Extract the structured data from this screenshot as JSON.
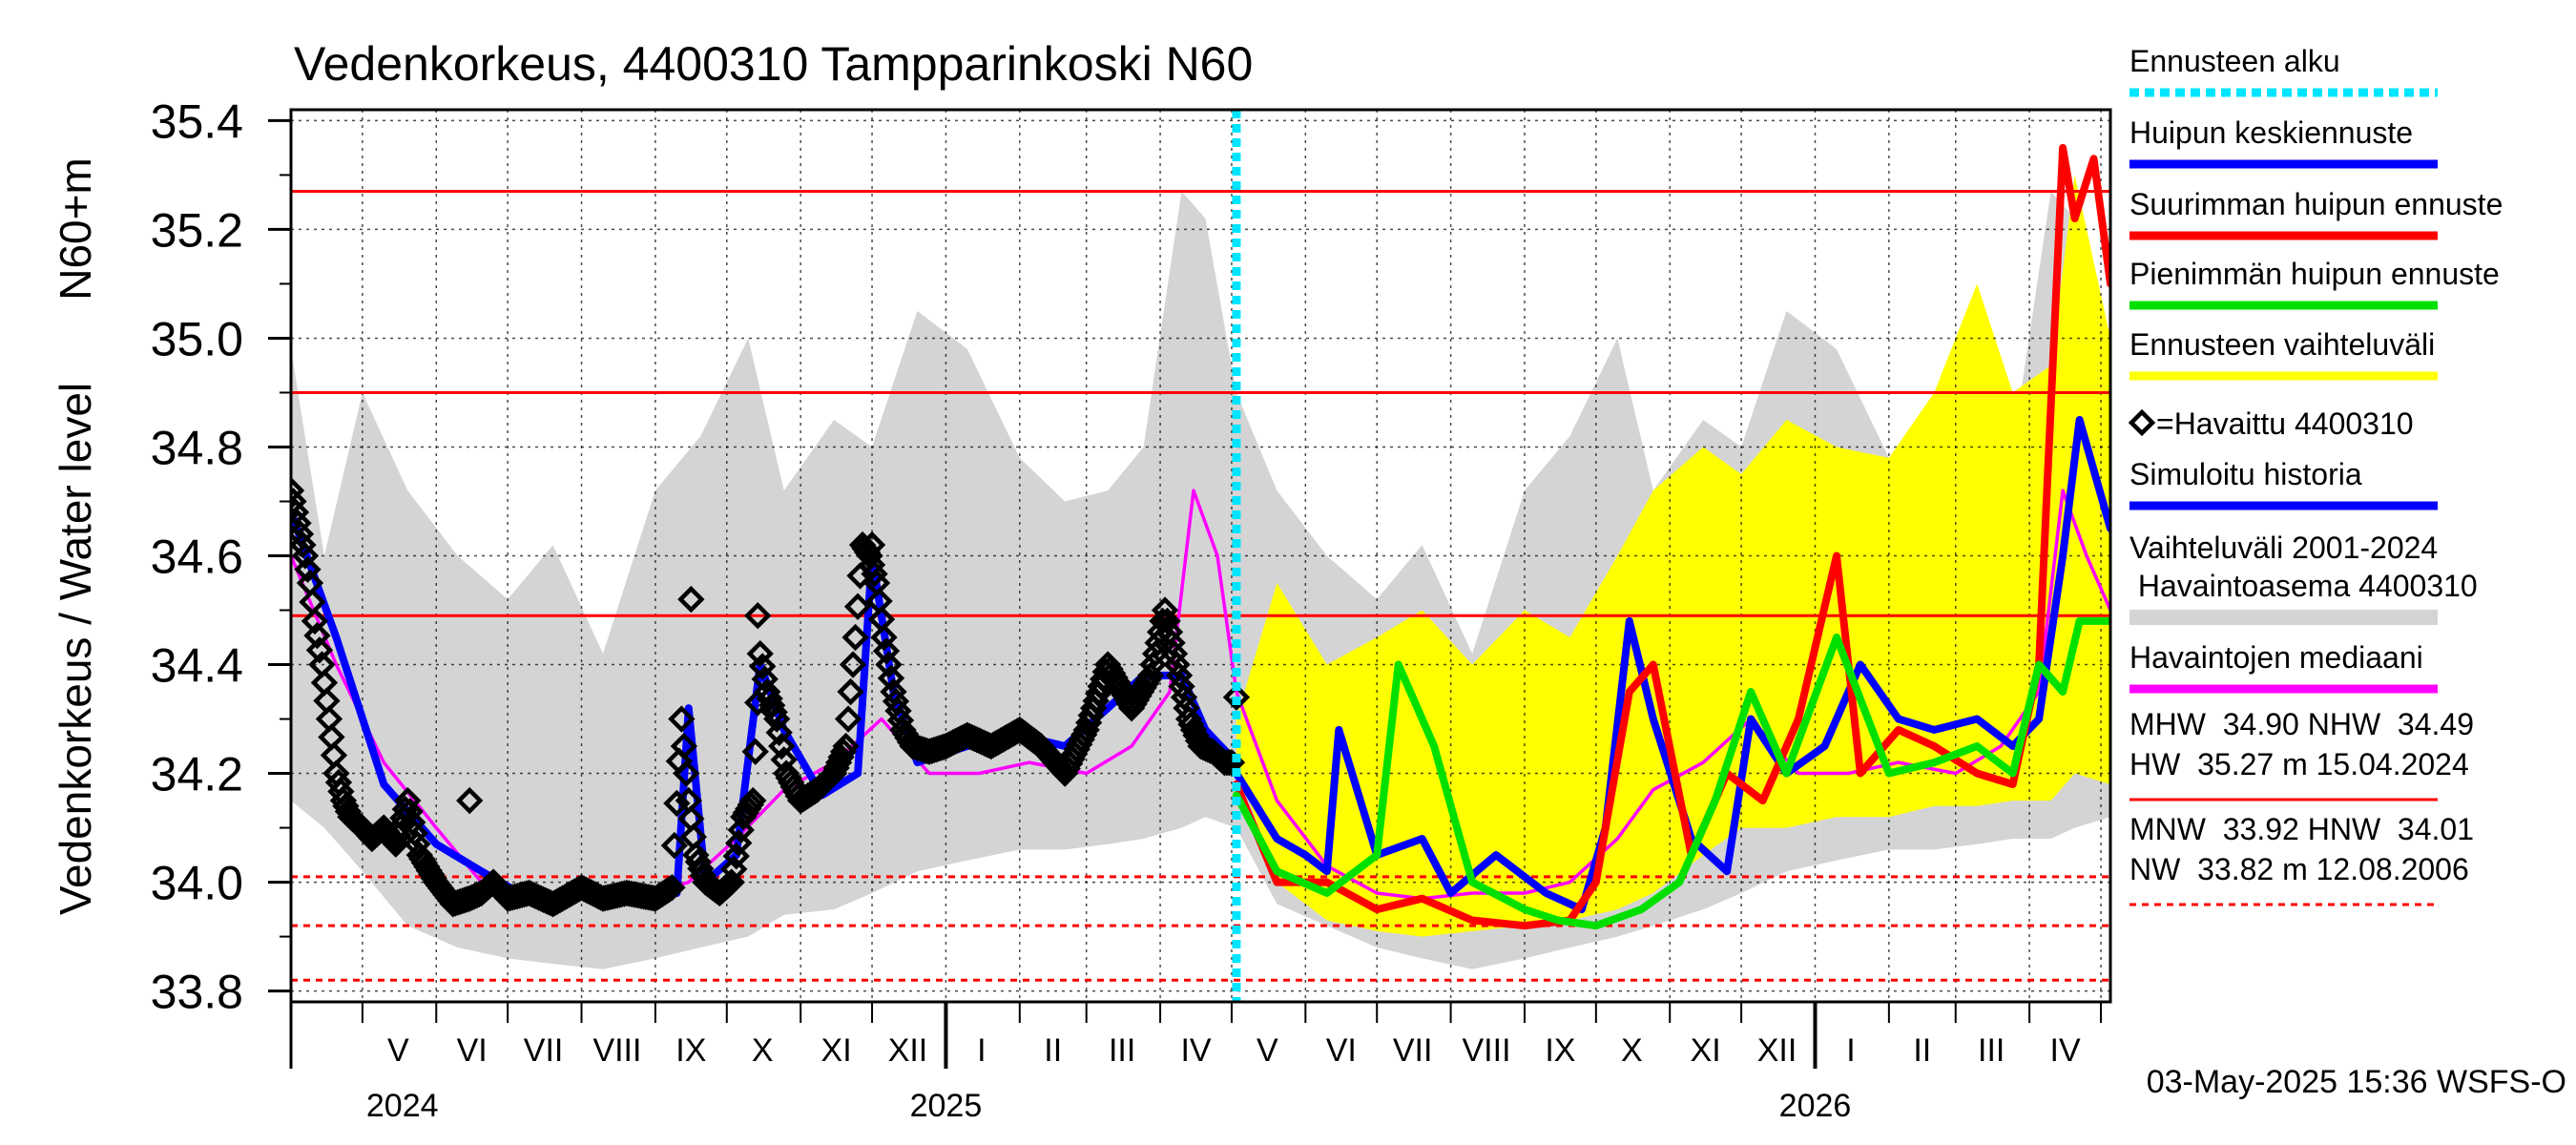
{
  "chart_data": {
    "type": "line",
    "title": "Vedenkorkeus, 4400310 Tampparinkoski N60",
    "ylabel_left": "Vedenkorkeus / Water level",
    "ylabel_right": "N60+m",
    "ylim": [
      33.78,
      35.42
    ],
    "y_ticks": [
      "33.8",
      "34.0",
      "34.2",
      "34.4",
      "34.6",
      "34.8",
      "35.0",
      "35.2",
      "35.4"
    ],
    "x_start": "2024-04-01",
    "x_end": "2026-05-05",
    "forecast_start": "2025-05-03",
    "month_labels": [
      {
        "label": "V",
        "date": "2024-05-16"
      },
      {
        "label": "VI",
        "date": "2024-06-16"
      },
      {
        "label": "VII",
        "date": "2024-07-16"
      },
      {
        "label": "VIII",
        "date": "2024-08-16"
      },
      {
        "label": "IX",
        "date": "2024-09-16"
      },
      {
        "label": "X",
        "date": "2024-10-16"
      },
      {
        "label": "XI",
        "date": "2024-11-16"
      },
      {
        "label": "XII",
        "date": "2024-12-16"
      },
      {
        "label": "I",
        "date": "2025-01-16"
      },
      {
        "label": "II",
        "date": "2025-02-15"
      },
      {
        "label": "III",
        "date": "2025-03-16"
      },
      {
        "label": "IV",
        "date": "2025-04-16"
      },
      {
        "label": "V",
        "date": "2025-05-16"
      },
      {
        "label": "VI",
        "date": "2025-06-16"
      },
      {
        "label": "VII",
        "date": "2025-07-16"
      },
      {
        "label": "VIII",
        "date": "2025-08-16"
      },
      {
        "label": "IX",
        "date": "2025-09-16"
      },
      {
        "label": "X",
        "date": "2025-10-16"
      },
      {
        "label": "XI",
        "date": "2025-11-16"
      },
      {
        "label": "XII",
        "date": "2025-12-16"
      },
      {
        "label": "I",
        "date": "2026-01-16"
      },
      {
        "label": "II",
        "date": "2026-02-15"
      },
      {
        "label": "III",
        "date": "2026-03-16"
      },
      {
        "label": "IV",
        "date": "2026-04-16"
      }
    ],
    "year_labels": [
      {
        "label": "2024",
        "date": "2024-05-01"
      },
      {
        "label": "2025",
        "date": "2025-01-01"
      },
      {
        "label": "2026",
        "date": "2026-01-01"
      }
    ],
    "reference_lines": [
      {
        "name": "HW",
        "value": 35.27,
        "style": "solid"
      },
      {
        "name": "MHW",
        "value": 34.9,
        "style": "solid"
      },
      {
        "name": "NHW",
        "value": 34.49,
        "style": "solid"
      },
      {
        "name": "HNW",
        "value": 34.01,
        "style": "dashed"
      },
      {
        "name": "MNW",
        "value": 33.92,
        "style": "dashed"
      },
      {
        "name": "NW",
        "value": 33.82,
        "style": "dashed"
      }
    ],
    "series": [
      {
        "name": "Vaihteluväli 2001-2024 Havaintoasema 4400310",
        "kind": "band",
        "color": "#d4d4d4",
        "x": [
          "2024-04-01",
          "2024-04-15",
          "2024-05-01",
          "2024-05-20",
          "2024-06-10",
          "2024-07-01",
          "2024-07-20",
          "2024-08-10",
          "2024-09-01",
          "2024-09-20",
          "2024-10-10",
          "2024-10-25",
          "2024-11-15",
          "2024-12-01",
          "2024-12-20",
          "2025-01-10",
          "2025-02-01",
          "2025-02-20",
          "2025-03-10",
          "2025-03-25",
          "2025-04-10",
          "2025-04-20",
          "2025-05-03",
          "2025-05-20",
          "2025-06-10",
          "2025-07-01",
          "2025-07-20",
          "2025-08-10",
          "2025-09-01",
          "2025-09-20",
          "2025-10-10",
          "2025-10-25",
          "2025-11-15",
          "2025-12-01",
          "2025-12-20",
          "2026-01-10",
          "2026-02-01",
          "2026-02-20",
          "2026-03-10",
          "2026-03-25",
          "2026-04-10",
          "2026-04-20",
          "2026-05-05"
        ],
        "low": [
          34.15,
          34.1,
          34.02,
          33.92,
          33.88,
          33.86,
          33.85,
          33.84,
          33.86,
          33.88,
          33.9,
          33.94,
          33.95,
          33.98,
          34.02,
          34.04,
          34.06,
          34.06,
          34.07,
          34.08,
          34.1,
          34.12,
          34.1,
          33.96,
          33.92,
          33.88,
          33.86,
          33.84,
          33.86,
          33.88,
          33.9,
          33.92,
          33.95,
          33.98,
          34.02,
          34.04,
          34.06,
          34.06,
          34.07,
          34.08,
          34.08,
          34.1,
          34.12
        ],
        "high": [
          34.98,
          34.6,
          34.9,
          34.72,
          34.6,
          34.52,
          34.62,
          34.42,
          34.72,
          34.82,
          35.0,
          34.72,
          34.85,
          34.8,
          35.05,
          34.98,
          34.78,
          34.7,
          34.72,
          34.8,
          35.27,
          35.22,
          34.9,
          34.72,
          34.6,
          34.52,
          34.62,
          34.42,
          34.72,
          34.82,
          35.0,
          34.72,
          34.85,
          34.8,
          35.05,
          34.98,
          34.78,
          34.7,
          34.72,
          34.8,
          35.27,
          35.22,
          34.98
        ]
      },
      {
        "name": "Ennusteen vaihteluväli",
        "kind": "band",
        "color": "#ffff00",
        "x": [
          "2025-05-03",
          "2025-05-20",
          "2025-06-10",
          "2025-07-01",
          "2025-07-20",
          "2025-08-10",
          "2025-09-01",
          "2025-09-20",
          "2025-10-10",
          "2025-10-25",
          "2025-11-15",
          "2025-12-01",
          "2025-12-20",
          "2026-01-10",
          "2026-02-01",
          "2026-02-20",
          "2026-03-10",
          "2026-03-25",
          "2026-04-10",
          "2026-04-20",
          "2026-05-05"
        ],
        "low": [
          34.22,
          34.0,
          33.93,
          33.91,
          33.9,
          33.91,
          33.92,
          33.93,
          33.95,
          33.98,
          34.05,
          34.1,
          34.1,
          34.12,
          34.12,
          34.14,
          34.14,
          34.15,
          34.15,
          34.2,
          34.18
        ],
        "high": [
          34.3,
          34.55,
          34.4,
          34.45,
          34.5,
          34.4,
          34.5,
          34.45,
          34.6,
          34.72,
          34.8,
          34.75,
          34.85,
          34.8,
          34.78,
          34.9,
          35.1,
          34.9,
          34.95,
          35.3,
          35.0
        ]
      },
      {
        "name": "Havaintojen mediaani",
        "kind": "line",
        "color": "#ff00ff",
        "x": [
          "2024-04-01",
          "2024-04-20",
          "2024-05-10",
          "2024-06-01",
          "2024-06-20",
          "2024-07-10",
          "2024-08-01",
          "2024-08-25",
          "2024-09-15",
          "2024-10-05",
          "2024-10-25",
          "2024-11-15",
          "2024-12-05",
          "2024-12-25",
          "2025-01-15",
          "2025-02-05",
          "2025-03-01",
          "2025-03-20",
          "2025-04-05",
          "2025-04-15",
          "2025-04-25",
          "2025-05-03",
          "2025-05-20",
          "2025-06-10",
          "2025-07-01",
          "2025-07-20",
          "2025-08-10",
          "2025-09-01",
          "2025-09-20",
          "2025-10-10",
          "2025-10-25",
          "2025-11-15",
          "2025-12-05",
          "2025-12-25",
          "2026-01-15",
          "2026-02-05",
          "2026-03-01",
          "2026-03-20",
          "2026-04-05",
          "2026-04-15",
          "2026-04-25",
          "2026-05-05"
        ],
        "values": [
          34.6,
          34.4,
          34.22,
          34.1,
          34.0,
          33.98,
          33.98,
          33.97,
          34.0,
          34.08,
          34.17,
          34.22,
          34.3,
          34.2,
          34.2,
          34.22,
          34.2,
          34.25,
          34.35,
          34.72,
          34.6,
          34.35,
          34.15,
          34.03,
          33.98,
          33.97,
          33.98,
          33.98,
          34.0,
          34.08,
          34.17,
          34.22,
          34.3,
          34.2,
          34.2,
          34.22,
          34.2,
          34.25,
          34.35,
          34.72,
          34.6,
          34.5
        ]
      },
      {
        "name": "Simuloitu historia",
        "kind": "line",
        "color": "#0000ff",
        "x": [
          "2024-04-01",
          "2024-04-20",
          "2024-05-10",
          "2024-06-01",
          "2024-06-20",
          "2024-07-10",
          "2024-08-01",
          "2024-08-25",
          "2024-09-10",
          "2024-09-15",
          "2024-09-22",
          "2024-10-05",
          "2024-10-15",
          "2024-10-25",
          "2024-11-10",
          "2024-11-25",
          "2024-12-01",
          "2024-12-10",
          "2024-12-20",
          "2025-01-10",
          "2025-02-01",
          "2025-02-20",
          "2025-03-10",
          "2025-03-25",
          "2025-04-10",
          "2025-04-20",
          "2025-05-03"
        ],
        "values": [
          34.68,
          34.45,
          34.18,
          34.07,
          34.02,
          33.97,
          33.98,
          33.97,
          33.98,
          34.32,
          34.0,
          34.05,
          34.4,
          34.28,
          34.16,
          34.2,
          34.6,
          34.35,
          34.22,
          34.25,
          34.27,
          34.25,
          34.32,
          34.38,
          34.38,
          34.28,
          34.22
        ]
      },
      {
        "name": "Huipun keskiennuste",
        "kind": "line",
        "color": "#0000ff",
        "x": [
          "2025-05-03",
          "2025-05-20",
          "2025-06-01",
          "2025-06-10",
          "2025-06-15",
          "2025-07-01",
          "2025-07-20",
          "2025-08-01",
          "2025-08-20",
          "2025-09-10",
          "2025-09-25",
          "2025-10-05",
          "2025-10-15",
          "2025-10-25",
          "2025-11-10",
          "2025-11-25",
          "2025-12-05",
          "2025-12-20",
          "2026-01-05",
          "2026-01-20",
          "2026-02-05",
          "2026-02-20",
          "2026-03-10",
          "2026-03-25",
          "2026-04-05",
          "2026-04-15",
          "2026-04-22",
          "2026-05-05"
        ],
        "values": [
          34.2,
          34.08,
          34.05,
          34.02,
          34.28,
          34.05,
          34.08,
          33.98,
          34.05,
          33.98,
          33.95,
          34.1,
          34.48,
          34.3,
          34.08,
          34.02,
          34.3,
          34.2,
          34.25,
          34.4,
          34.3,
          34.28,
          34.3,
          34.25,
          34.3,
          34.6,
          34.85,
          34.65
        ]
      },
      {
        "name": "Suurimman huipun ennuste",
        "kind": "line",
        "color": "#ff0000",
        "x": [
          "2025-05-03",
          "2025-05-20",
          "2025-06-10",
          "2025-07-01",
          "2025-07-20",
          "2025-08-10",
          "2025-09-01",
          "2025-09-20",
          "2025-10-01",
          "2025-10-15",
          "2025-10-25",
          "2025-11-10",
          "2025-11-25",
          "2025-12-10",
          "2025-12-25",
          "2026-01-10",
          "2026-01-20",
          "2026-02-05",
          "2026-02-20",
          "2026-03-10",
          "2026-03-25",
          "2026-04-05",
          "2026-04-15",
          "2026-04-20",
          "2026-04-28",
          "2026-05-05"
        ],
        "values": [
          34.18,
          34.0,
          34.0,
          33.95,
          33.97,
          33.93,
          33.92,
          33.93,
          34.0,
          34.35,
          34.4,
          34.05,
          34.2,
          34.15,
          34.3,
          34.6,
          34.2,
          34.28,
          34.25,
          34.2,
          34.18,
          34.4,
          35.35,
          35.22,
          35.33,
          35.1
        ]
      },
      {
        "name": "Pienimmän huipun ennuste",
        "kind": "line",
        "color": "#00e000",
        "x": [
          "2025-05-03",
          "2025-05-20",
          "2025-06-10",
          "2025-07-01",
          "2025-07-10",
          "2025-07-25",
          "2025-08-10",
          "2025-09-01",
          "2025-09-15",
          "2025-10-01",
          "2025-10-20",
          "2025-11-05",
          "2025-11-20",
          "2025-12-05",
          "2025-12-20",
          "2026-01-10",
          "2026-02-01",
          "2026-02-20",
          "2026-03-10",
          "2026-03-25",
          "2026-04-05",
          "2026-04-15",
          "2026-04-22",
          "2026-05-05"
        ],
        "values": [
          34.16,
          34.02,
          33.98,
          34.05,
          34.4,
          34.25,
          34.0,
          33.95,
          33.93,
          33.92,
          33.95,
          34.0,
          34.15,
          34.35,
          34.2,
          34.45,
          34.2,
          34.22,
          34.25,
          34.2,
          34.4,
          34.35,
          34.48,
          34.48
        ]
      }
    ],
    "observed": {
      "name": "=Havaittu 4400310",
      "x": [
        "2024-04-01",
        "2024-04-03",
        "2024-04-05",
        "2024-04-07",
        "2024-04-09",
        "2024-04-11",
        "2024-04-14",
        "2024-04-17",
        "2024-04-20",
        "2024-04-23",
        "2024-04-26",
        "2024-05-01",
        "2024-05-05",
        "2024-05-10",
        "2024-05-15",
        "2024-05-20",
        "2024-05-25",
        "2024-06-01",
        "2024-06-08",
        "2024-06-15",
        "2024-06-20",
        "2024-06-25",
        "2024-07-01",
        "2024-07-10",
        "2024-07-20",
        "2024-08-01",
        "2024-08-10",
        "2024-08-20",
        "2024-09-01",
        "2024-09-08",
        "2024-09-12",
        "2024-09-15",
        "2024-09-18",
        "2024-09-22",
        "2024-09-28",
        "2024-10-03",
        "2024-10-08",
        "2024-10-12",
        "2024-10-15",
        "2024-10-18",
        "2024-10-22",
        "2024-10-26",
        "2024-11-01",
        "2024-11-08",
        "2024-11-15",
        "2024-11-20",
        "2024-11-24",
        "2024-11-27",
        "2024-11-30",
        "2024-12-03",
        "2024-12-06",
        "2024-12-10",
        "2024-12-14",
        "2024-12-18",
        "2024-12-25",
        "2025-01-01",
        "2025-01-10",
        "2025-01-20",
        "2025-02-01",
        "2025-02-10",
        "2025-02-20",
        "2025-03-01",
        "2025-03-10",
        "2025-03-20",
        "2025-03-28",
        "2025-04-03",
        "2025-04-08",
        "2025-04-13",
        "2025-04-18",
        "2025-04-23",
        "2025-04-28",
        "2025-05-02"
      ],
      "values": [
        34.72,
        34.68,
        34.64,
        34.6,
        34.55,
        34.48,
        34.4,
        34.3,
        34.2,
        34.15,
        34.12,
        34.1,
        34.08,
        34.1,
        34.07,
        34.15,
        34.05,
        34.0,
        33.96,
        33.97,
        33.98,
        34.0,
        33.97,
        33.98,
        33.96,
        33.99,
        33.97,
        33.98,
        33.97,
        33.99,
        34.3,
        34.15,
        34.05,
        34.0,
        33.98,
        34.0,
        34.12,
        34.15,
        34.42,
        34.35,
        34.3,
        34.2,
        34.15,
        34.17,
        34.2,
        34.25,
        34.45,
        34.62,
        34.6,
        34.55,
        34.45,
        34.35,
        34.28,
        34.25,
        34.24,
        34.25,
        34.27,
        34.25,
        34.28,
        34.25,
        34.2,
        34.28,
        34.4,
        34.32,
        34.38,
        34.5,
        34.4,
        34.3,
        34.25,
        34.24,
        34.22,
        34.22
      ]
    },
    "outlier_markers": [
      {
        "date": "2024-06-15",
        "value": 34.15
      },
      {
        "date": "2024-09-16",
        "value": 34.52
      },
      {
        "date": "2024-10-14",
        "value": 34.49
      },
      {
        "date": "2024-12-01",
        "value": 34.62
      },
      {
        "date": "2025-05-03",
        "value": 34.34
      }
    ]
  },
  "legend": {
    "items": [
      {
        "label": "Ennusteen alku",
        "color": "#00e5ff",
        "style": "dashed"
      },
      {
        "label": "Huipun keskiennuste",
        "color": "#0000ff",
        "style": "solid"
      },
      {
        "label": "Suurimman huipun ennuste",
        "color": "#ff0000",
        "style": "solid"
      },
      {
        "label": "Pienimmän huipun ennuste",
        "color": "#00e000",
        "style": "solid"
      },
      {
        "label": "Ennusteen vaihteluväli",
        "color": "#ffff00",
        "style": "solid"
      },
      {
        "label": "=Havaittu 4400310",
        "color": "#000000",
        "style": "marker"
      },
      {
        "label": "Simuloitu historia",
        "color": "#0000ff",
        "style": "solid"
      },
      {
        "label": "Vaihteluväli 2001-2024",
        "color": "",
        "style": "none"
      },
      {
        "label": " Havaintoasema 4400310",
        "color": "#d4d4d4",
        "style": "solid"
      },
      {
        "label": "Havaintojen mediaani",
        "color": "#ff00ff",
        "style": "solid"
      }
    ],
    "stats": [
      {
        "lines": [
          "MHW  34.90 NHW  34.49",
          "HW  35.27 m 15.04.2024"
        ],
        "color": "#ff0000",
        "style": "solid"
      },
      {
        "lines": [
          "MNW  33.92 HNW  34.01",
          "NW  33.82 m 12.08.2006"
        ],
        "color": "#ff0000",
        "style": "dashed"
      }
    ]
  },
  "footer": {
    "timestamp": "03-May-2025 15:36 WSFS-O"
  }
}
